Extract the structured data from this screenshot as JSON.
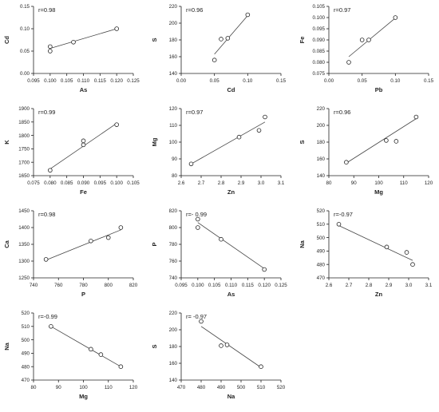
{
  "chart_data": [
    {
      "type": "scatter",
      "annotation": "r=0.98",
      "xlabel": "As",
      "ylabel": "Cd",
      "xlim": [
        0.095,
        0.125
      ],
      "ylim": [
        0.0,
        0.15
      ],
      "xticks": [
        0.095,
        0.1,
        0.105,
        0.11,
        0.115,
        0.12,
        0.125
      ],
      "xtick_labels": [
        "0.095",
        "0.100",
        "0.105",
        "0.110",
        "0.115",
        "0.120",
        "0.125"
      ],
      "yticks": [
        0.0,
        0.05,
        0.1,
        0.15
      ],
      "ytick_labels": [
        "0.00",
        "0.05",
        "0.10",
        "0.15"
      ],
      "points": [
        [
          0.1,
          0.06
        ],
        [
          0.1,
          0.05
        ],
        [
          0.107,
          0.07
        ],
        [
          0.12,
          0.1
        ]
      ],
      "fit": [
        [
          0.1,
          0.056
        ],
        [
          0.12,
          0.1
        ]
      ]
    },
    {
      "type": "scatter",
      "annotation": "r=0.96",
      "xlabel": "Cd",
      "ylabel": "S",
      "xlim": [
        0.0,
        0.15
      ],
      "ylim": [
        140,
        220
      ],
      "xticks": [
        0.0,
        0.05,
        0.1,
        0.15
      ],
      "xtick_labels": [
        "0.00",
        "0.05",
        "0.10",
        "0.15"
      ],
      "yticks": [
        140,
        160,
        180,
        200,
        220
      ],
      "ytick_labels": [
        "140",
        "160",
        "180",
        "200",
        "220"
      ],
      "points": [
        [
          0.05,
          156
        ],
        [
          0.06,
          181
        ],
        [
          0.07,
          182
        ],
        [
          0.1,
          210
        ]
      ],
      "fit": [
        [
          0.05,
          163
        ],
        [
          0.1,
          209
        ]
      ]
    },
    {
      "type": "scatter",
      "annotation": "r=0.97",
      "xlabel": "Pb",
      "ylabel": "Fe",
      "xlim": [
        0.0,
        0.15
      ],
      "ylim": [
        0.075,
        0.105
      ],
      "xticks": [
        0.0,
        0.05,
        0.1,
        0.15
      ],
      "xtick_labels": [
        "0.00",
        "0.05",
        "0.10",
        "0.15"
      ],
      "yticks": [
        0.075,
        0.08,
        0.085,
        0.09,
        0.095,
        0.1,
        0.105
      ],
      "ytick_labels": [
        "0.075",
        "0.080",
        "0.085",
        "0.090",
        "0.095",
        "0.100",
        "0.105"
      ],
      "points": [
        [
          0.03,
          0.08
        ],
        [
          0.05,
          0.09
        ],
        [
          0.06,
          0.09
        ],
        [
          0.1,
          0.1
        ]
      ],
      "fit": [
        [
          0.03,
          0.0825
        ],
        [
          0.1,
          0.0998
        ]
      ]
    },
    {
      "type": "scatter",
      "annotation": "r=0.99",
      "xlabel": "Fe",
      "ylabel": "K",
      "xlim": [
        0.075,
        0.105
      ],
      "ylim": [
        1650,
        1900
      ],
      "xticks": [
        0.075,
        0.08,
        0.085,
        0.09,
        0.095,
        0.1,
        0.105
      ],
      "xtick_labels": [
        "0.075",
        "0.080",
        "0.085",
        "0.090",
        "0.095",
        "0.100",
        "0.105"
      ],
      "yticks": [
        1650,
        1700,
        1750,
        1800,
        1850,
        1900
      ],
      "ytick_labels": [
        "1650",
        "1700",
        "1750",
        "1800",
        "1850",
        "1900"
      ],
      "points": [
        [
          0.08,
          1670
        ],
        [
          0.09,
          1765
        ],
        [
          0.09,
          1780
        ],
        [
          0.1,
          1840
        ]
      ],
      "fit": [
        [
          0.08,
          1675
        ],
        [
          0.1,
          1845
        ]
      ]
    },
    {
      "type": "scatter",
      "annotation": "r=0.97",
      "xlabel": "Zn",
      "ylabel": "Mg",
      "xlim": [
        2.6,
        3.1
      ],
      "ylim": [
        80,
        120
      ],
      "xticks": [
        2.6,
        2.7,
        2.8,
        2.9,
        3.0,
        3.1
      ],
      "xtick_labels": [
        "2.6",
        "2.7",
        "2.8",
        "2.9",
        "3.0",
        "3.1"
      ],
      "yticks": [
        80,
        90,
        100,
        110,
        120
      ],
      "ytick_labels": [
        "80",
        "90",
        "100",
        "110",
        "120"
      ],
      "points": [
        [
          2.65,
          87
        ],
        [
          2.89,
          103
        ],
        [
          2.99,
          107
        ],
        [
          3.02,
          115
        ]
      ],
      "fit": [
        [
          2.65,
          87
        ],
        [
          3.02,
          112
        ]
      ]
    },
    {
      "type": "scatter",
      "annotation": "r=0.96",
      "xlabel": "Mg",
      "ylabel": "S",
      "xlim": [
        80,
        120
      ],
      "ylim": [
        140,
        220
      ],
      "xticks": [
        80,
        90,
        100,
        110,
        120
      ],
      "xtick_labels": [
        "80",
        "90",
        "100",
        "110",
        "120"
      ],
      "yticks": [
        140,
        160,
        180,
        200,
        220
      ],
      "ytick_labels": [
        "140",
        "160",
        "180",
        "200",
        "220"
      ],
      "points": [
        [
          87,
          156
        ],
        [
          103,
          182
        ],
        [
          107,
          181
        ],
        [
          115,
          210
        ]
      ],
      "fit": [
        [
          87,
          155
        ],
        [
          115,
          208
        ]
      ]
    },
    {
      "type": "scatter",
      "annotation": "r=0.98",
      "xlabel": "P",
      "ylabel": "Ca",
      "xlim": [
        740,
        820
      ],
      "ylim": [
        1250,
        1450
      ],
      "xticks": [
        740,
        760,
        780,
        800,
        820
      ],
      "xtick_labels": [
        "740",
        "760",
        "780",
        "800",
        "820"
      ],
      "yticks": [
        1250,
        1300,
        1350,
        1400,
        1450
      ],
      "ytick_labels": [
        "1250",
        "1300",
        "1350",
        "1400",
        "1450"
      ],
      "points": [
        [
          750,
          1305
        ],
        [
          786,
          1360
        ],
        [
          800,
          1370
        ],
        [
          810,
          1400
        ]
      ],
      "fit": [
        [
          750,
          1303
        ],
        [
          810,
          1393
        ]
      ]
    },
    {
      "type": "scatter",
      "annotation": "r=- 0.99",
      "xlabel": "As",
      "ylabel": "P",
      "xlim": [
        0.095,
        0.125
      ],
      "ylim": [
        740,
        820
      ],
      "xticks": [
        0.095,
        0.1,
        0.105,
        0.11,
        0.115,
        0.12,
        0.125
      ],
      "xtick_labels": [
        "0.095",
        "0.100",
        "0.105",
        "0.110",
        "0.115",
        "0.120",
        "0.125"
      ],
      "yticks": [
        740,
        760,
        780,
        800,
        820
      ],
      "ytick_labels": [
        "740",
        "760",
        "780",
        "800",
        "820"
      ],
      "points": [
        [
          0.1,
          810
        ],
        [
          0.1,
          800
        ],
        [
          0.107,
          786
        ],
        [
          0.12,
          750
        ]
      ],
      "fit": [
        [
          0.1,
          806
        ],
        [
          0.12,
          751
        ]
      ]
    },
    {
      "type": "scatter",
      "annotation": "r=-0.97",
      "xlabel": "Zn",
      "ylabel": "Na",
      "xlim": [
        2.6,
        3.1
      ],
      "ylim": [
        470,
        520
      ],
      "xticks": [
        2.6,
        2.7,
        2.8,
        2.9,
        3.0,
        3.1
      ],
      "xtick_labels": [
        "2.6",
        "2.7",
        "2.8",
        "2.9",
        "3.0",
        "3.1"
      ],
      "yticks": [
        470,
        480,
        490,
        500,
        510,
        520
      ],
      "ytick_labels": [
        "470",
        "480",
        "490",
        "500",
        "510",
        "520"
      ],
      "points": [
        [
          2.65,
          510
        ],
        [
          2.89,
          493
        ],
        [
          2.99,
          489
        ],
        [
          3.02,
          480
        ]
      ],
      "fit": [
        [
          2.65,
          509
        ],
        [
          3.02,
          483
        ]
      ]
    },
    {
      "type": "scatter",
      "annotation": "r=-0.99",
      "xlabel": "Mg",
      "ylabel": "Na",
      "xlim": [
        80,
        120
      ],
      "ylim": [
        470,
        520
      ],
      "xticks": [
        80,
        90,
        100,
        110,
        120
      ],
      "xtick_labels": [
        "80",
        "90",
        "100",
        "110",
        "120"
      ],
      "yticks": [
        470,
        480,
        490,
        500,
        510,
        520
      ],
      "ytick_labels": [
        "470",
        "480",
        "490",
        "500",
        "510",
        "520"
      ],
      "points": [
        [
          87,
          510
        ],
        [
          103,
          493
        ],
        [
          107,
          489
        ],
        [
          115,
          480
        ]
      ],
      "fit": [
        [
          87,
          510
        ],
        [
          115,
          480
        ]
      ]
    },
    {
      "type": "scatter",
      "annotation": "r= -0.97",
      "xlabel": "Na",
      "ylabel": "S",
      "xlim": [
        470,
        520
      ],
      "ylim": [
        140,
        220
      ],
      "xticks": [
        470,
        480,
        490,
        500,
        510,
        520
      ],
      "xtick_labels": [
        "470",
        "480",
        "490",
        "500",
        "510",
        "520"
      ],
      "yticks": [
        140,
        160,
        180,
        200,
        220
      ],
      "ytick_labels": [
        "140",
        "160",
        "180",
        "200",
        "220"
      ],
      "points": [
        [
          480,
          210
        ],
        [
          490,
          181
        ],
        [
          493,
          182
        ],
        [
          510,
          156
        ]
      ],
      "fit": [
        [
          480,
          204
        ],
        [
          510,
          155
        ]
      ]
    }
  ]
}
